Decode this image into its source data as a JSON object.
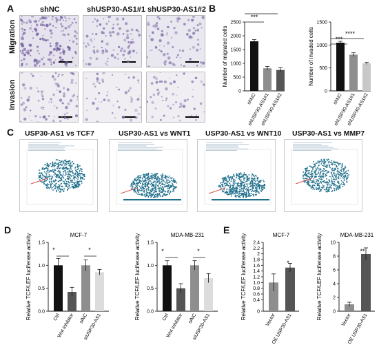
{
  "panels": {
    "A": {
      "letter": "A",
      "columns": [
        "shNC",
        "shUSP30-AS1#1",
        "shUSP30-AS1#2"
      ],
      "rows": [
        "Migration",
        "Invasion"
      ]
    },
    "B": {
      "letter": "B",
      "significance": [
        "***",
        "***",
        "***",
        "****"
      ]
    },
    "C": {
      "letter": "C",
      "titles": [
        "USP30-AS1 vs TCF7",
        "USP30-AS1 vs WNT1",
        "USP30-AS1 vs WNT10",
        "USP30-AS1 vs MMP7"
      ]
    },
    "D": {
      "letter": "D",
      "significance": [
        "*",
        "*",
        "*",
        "*"
      ]
    },
    "E": {
      "letter": "E",
      "significance": [
        "*",
        "**"
      ]
    }
  },
  "colors": {
    "black": "#111111",
    "dark_gray": "#555555",
    "mid_gray": "#8e8e8e",
    "light_gray": "#c8c8c8",
    "lighter_gray": "#dcdcdc",
    "scatter_point": "#1f6f8b",
    "fit_line": "#d9534f"
  },
  "chart_data": [
    {
      "id": "B-migrated",
      "type": "bar",
      "categories": [
        "shNC",
        "shUSP30-AS1#1",
        "shUSP30-AS1#2"
      ],
      "values": [
        1800,
        820,
        760
      ],
      "errors": [
        60,
        70,
        80
      ],
      "colors": [
        "#111111",
        "#8e8e8e",
        "#555555"
      ],
      "ylabel": "Number of migrated cells",
      "ylim": [
        0,
        2500
      ],
      "yticks": [
        0,
        500,
        1000,
        1500,
        2000,
        2500
      ]
    },
    {
      "id": "B-invaded",
      "type": "bar",
      "categories": [
        "shNC",
        "shUSP30-AS1#1",
        "shUSP30-AS1#2"
      ],
      "values": [
        1050,
        790,
        600
      ],
      "errors": [
        30,
        40,
        20
      ],
      "colors": [
        "#111111",
        "#8e8e8e",
        "#c8c8c8"
      ],
      "ylabel": "Number of invaded cells",
      "ylim": [
        0,
        1500
      ],
      "yticks": [
        0,
        500,
        1000,
        1500
      ]
    },
    {
      "id": "D-MCF7",
      "type": "bar",
      "title": "MCF-7",
      "categories": [
        "Ctrl",
        "Wnt inhibitor",
        "siNC",
        "siUSP30-AS1"
      ],
      "values": [
        1.0,
        0.42,
        1.0,
        0.85
      ],
      "errors": [
        0.15,
        0.1,
        0.12,
        0.06
      ],
      "colors": [
        "#111111",
        "#555555",
        "#8e8e8e",
        "#dcdcdc"
      ],
      "ylabel": "Relative TCF/LEF luciferase activity",
      "ylim": [
        0,
        1.5
      ],
      "yticks": [
        0,
        0.5,
        1,
        1.5
      ],
      "yticklabels": [
        "0.0",
        "0.5",
        "1.0",
        "1.5"
      ]
    },
    {
      "id": "D-MDA",
      "type": "bar",
      "title": "MDA-MB-231",
      "categories": [
        "Ctrl",
        "Wnt inhibitor",
        "siNC",
        "siUSP30-AS1"
      ],
      "values": [
        1.0,
        0.5,
        1.0,
        0.72
      ],
      "errors": [
        0.1,
        0.1,
        0.1,
        0.1
      ],
      "colors": [
        "#111111",
        "#555555",
        "#8e8e8e",
        "#dcdcdc"
      ],
      "ylabel": "Relative TCF/LEF luciferase activity",
      "ylim": [
        0,
        1.5
      ],
      "yticks": [
        0,
        0.5,
        1,
        1.5
      ],
      "yticklabels": [
        "0.0",
        "0.5",
        "1.0",
        "1.5"
      ]
    },
    {
      "id": "E-MCF7",
      "type": "bar",
      "title": "MCF-7",
      "categories": [
        "Vector",
        "OE USP30-AS1"
      ],
      "values": [
        1.0,
        1.52
      ],
      "errors": [
        0.3,
        0.15
      ],
      "colors": [
        "#8e8e8e",
        "#555555"
      ],
      "ylabel": "Relative TCF/LEF luciferase activity",
      "ylim": [
        0,
        2.4
      ],
      "yticks": [
        0.0,
        0.4,
        0.6,
        0.8,
        1.0,
        1.2,
        1.4,
        1.6,
        1.8,
        2.0,
        2.2,
        2.4
      ],
      "yticklabels": [
        "0",
        "0.4",
        "0.6",
        "0.8",
        "1.0",
        "1.2",
        "1.4",
        "1.6",
        "1.8",
        "2",
        "2.2",
        "2.4"
      ]
    },
    {
      "id": "E-MDA",
      "type": "bar",
      "title": "MDA-MB-231",
      "categories": [
        "Vector",
        "OE USP30-AS1"
      ],
      "values": [
        1.0,
        8.3
      ],
      "errors": [
        0.3,
        0.9
      ],
      "colors": [
        "#8e8e8e",
        "#555555"
      ],
      "ylabel": "Relative TCF/LEF luciferase activity",
      "ylim": [
        0,
        10
      ],
      "yticks": [
        0,
        2,
        4,
        6,
        8,
        10
      ]
    }
  ]
}
